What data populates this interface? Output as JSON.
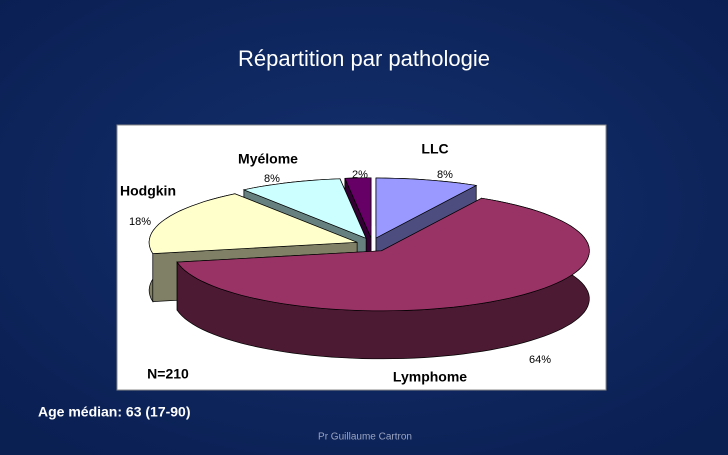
{
  "chart_data": {
    "type": "pie3d",
    "title": "Répartition par pathologie",
    "categories": [
      "LLC",
      "Lymphome",
      "Hodgkin",
      "Myélome",
      null
    ],
    "values": [
      8,
      64,
      18,
      8,
      2
    ],
    "value_labels": [
      "8%",
      "64%",
      "18%",
      "8%",
      "2%"
    ],
    "colors": [
      "#9999ff",
      "#993366",
      "#ffffcc",
      "#ccffff",
      "#660066"
    ],
    "annotations": [
      "N=210",
      "Age médian: 63 (17-90)"
    ],
    "footer": "Pr Guillaume Cartron"
  }
}
